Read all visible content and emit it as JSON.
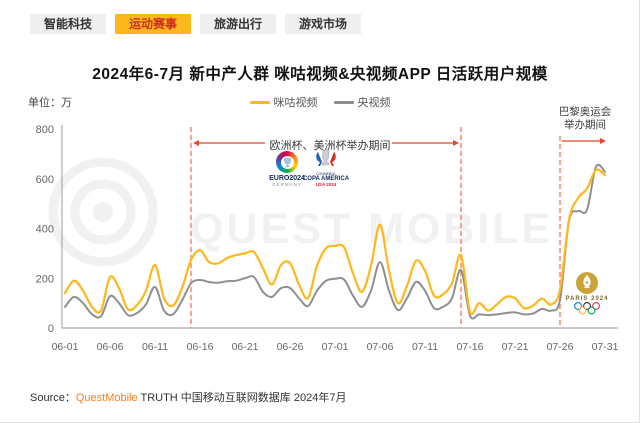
{
  "tabs": [
    {
      "label": "智能科技",
      "active": false
    },
    {
      "label": "运动赛事",
      "active": true
    },
    {
      "label": "旅游出行",
      "active": false
    },
    {
      "label": "游戏市场",
      "active": false
    }
  ],
  "title": "2024年6-7月 新中产人群 咪咕视频&央视频APP 日活跃用户规模",
  "unit_label": "单位：万",
  "watermark_text": "QUEST MOBILE",
  "annotations": {
    "euro_copa": "欧洲杯、美洲杯举办期间",
    "paris_line1": "巴黎奥运会",
    "paris_line2": "举办期间"
  },
  "logos": {
    "euro": {
      "line1": "EURO2024",
      "line2": "GERMANY",
      "trophy": "🏆"
    },
    "copa": {
      "line0": "CONMEBOL",
      "line1": "COPA AMERICA",
      "line2": "USA 2024"
    },
    "paris": {
      "text": "PARIS 2024"
    }
  },
  "source": {
    "prefix": "Source：",
    "brand": "QuestMobile",
    "rest": " TRUTH 中国移动互联网数据库 2024年7月"
  },
  "colors": {
    "migu_line": "#ffb71b",
    "cctv_line": "#8f8f8f",
    "event_dash": "#f09078",
    "event_arrow": "#e2462b",
    "active_tab_bg": "#ffb81c",
    "active_tab_text": "#c8301f",
    "axis": "#ababab",
    "tick_text": "#666666",
    "watermark": "#f1f1f1"
  },
  "chart_data": {
    "type": "line",
    "title": "2024年6-7月 新中产人群 咪咕视频&央视频APP 日活跃用户规模",
    "ylabel": "单位：万",
    "ylim": [
      0,
      800
    ],
    "yticks": [
      0,
      200,
      400,
      600,
      800
    ],
    "xticks": [
      "06-01",
      "06-06",
      "06-11",
      "06-16",
      "06-21",
      "06-26",
      "07-01",
      "07-06",
      "07-11",
      "07-16",
      "07-21",
      "07-26",
      "07-31"
    ],
    "grid": false,
    "legend_position": "top-center",
    "x": [
      "06-01",
      "06-02",
      "06-03",
      "06-04",
      "06-05",
      "06-06",
      "06-07",
      "06-08",
      "06-09",
      "06-10",
      "06-11",
      "06-12",
      "06-13",
      "06-14",
      "06-15",
      "06-16",
      "06-17",
      "06-18",
      "06-19",
      "06-20",
      "06-21",
      "06-22",
      "06-23",
      "06-24",
      "06-25",
      "06-26",
      "06-27",
      "06-28",
      "06-29",
      "06-30",
      "07-01",
      "07-02",
      "07-03",
      "07-04",
      "07-05",
      "07-06",
      "07-07",
      "07-08",
      "07-09",
      "07-10",
      "07-11",
      "07-12",
      "07-13",
      "07-14",
      "07-15",
      "07-16",
      "07-17",
      "07-18",
      "07-19",
      "07-20",
      "07-21",
      "07-22",
      "07-23",
      "07-24",
      "07-25",
      "07-26",
      "07-27",
      "07-28",
      "07-29",
      "07-30",
      "07-31"
    ],
    "series": [
      {
        "name": "咪咕视频",
        "color": "#ffb71b",
        "values": [
          140,
          190,
          150,
          85,
          70,
          205,
          160,
          75,
          92,
          150,
          253,
          120,
          90,
          160,
          273,
          313,
          265,
          260,
          281,
          293,
          300,
          305,
          240,
          175,
          253,
          261,
          175,
          120,
          250,
          320,
          330,
          325,
          220,
          145,
          250,
          415,
          230,
          100,
          170,
          270,
          230,
          130,
          135,
          180,
          293,
          65,
          100,
          70,
          95,
          125,
          120,
          80,
          90,
          118,
          95,
          153,
          434,
          522,
          560,
          635,
          615
        ]
      },
      {
        "name": "央视频",
        "color": "#8f8f8f",
        "values": [
          85,
          125,
          100,
          55,
          47,
          128,
          100,
          52,
          60,
          95,
          165,
          70,
          55,
          110,
          180,
          193,
          185,
          182,
          188,
          190,
          200,
          205,
          145,
          125,
          160,
          161,
          120,
          88,
          150,
          190,
          198,
          195,
          130,
          85,
          150,
          265,
          150,
          72,
          120,
          185,
          150,
          80,
          85,
          120,
          233,
          50,
          55,
          52,
          55,
          60,
          63,
          55,
          58,
          77,
          70,
          113,
          430,
          470,
          475,
          648,
          628
        ]
      }
    ],
    "events": [
      {
        "label": "欧洲杯、美洲杯举办期间",
        "start_date": "06-15",
        "end_date": "07-15"
      },
      {
        "label": "巴黎奥运会举办期间",
        "start_date": "07-26",
        "end_date": "07-31"
      }
    ]
  }
}
